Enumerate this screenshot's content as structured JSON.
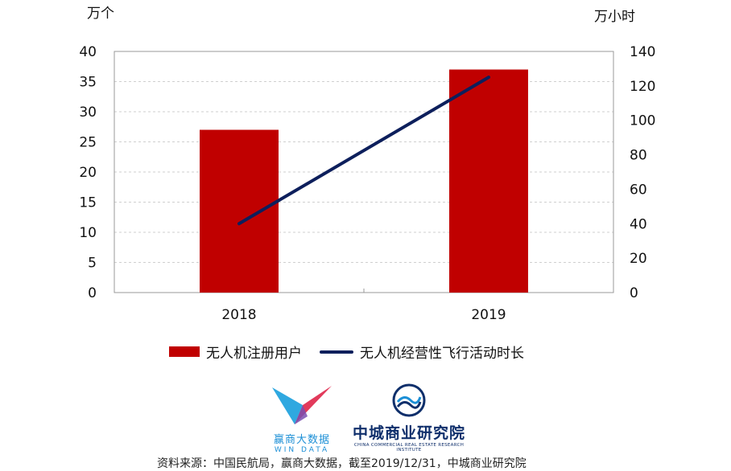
{
  "chart_data": {
    "type": "bar",
    "categories": [
      "2018",
      "2019"
    ],
    "series": [
      {
        "name": "无人机注册用户",
        "type": "bar",
        "axis": "left",
        "values": [
          27,
          37
        ]
      },
      {
        "name": "无人机经营性飞行活动时长",
        "type": "line",
        "axis": "right",
        "values": [
          40,
          125
        ]
      }
    ],
    "y_left": {
      "unit": "万个",
      "ylim": [
        0,
        40
      ],
      "ticks": [
        0,
        5,
        10,
        15,
        20,
        25,
        30,
        35,
        40
      ]
    },
    "y_right": {
      "unit": "万小时",
      "ylim": [
        0,
        140
      ],
      "ticks": [
        0,
        20,
        40,
        60,
        80,
        100,
        120,
        140
      ]
    },
    "grid": true,
    "legend_placement": "bottom",
    "colors": {
      "bar": "#c00000",
      "line": "#0d1f5c"
    }
  },
  "logos": {
    "winda": {
      "cn": "赢商大数据",
      "en": "WIN DATA"
    },
    "zhongcheng": {
      "cn": "中城商业研究院",
      "en": "CHINA COMMERCIAL REAL ESTATE RESEARCH INSTITUTE"
    }
  },
  "source": "资料来源：中国民航局，赢商大数据，截至2019/12/31，中城商业研究院"
}
